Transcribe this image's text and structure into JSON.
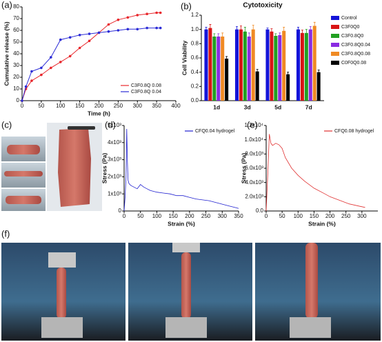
{
  "chart_data": [
    {
      "type": "line",
      "panel_label": "(a)",
      "x_label": "Time (h)",
      "y_label": "Cumulative release (%)",
      "x": [
        0,
        10,
        25,
        50,
        75,
        100,
        125,
        150,
        175,
        200,
        225,
        250,
        275,
        300,
        325,
        350,
        360
      ],
      "series": [
        {
          "name": "C3F0.8Q 0.08",
          "color": "#e8262b",
          "values": [
            0,
            10,
            17,
            22,
            28,
            33,
            38,
            45,
            51,
            58,
            65,
            69,
            71,
            73,
            74,
            75,
            75
          ]
        },
        {
          "name": "C3F0.8Q 0.04",
          "color": "#2b2bd6",
          "values": [
            0,
            12,
            25,
            28,
            37,
            52,
            54,
            56,
            57,
            58,
            59,
            60,
            61,
            61,
            62,
            62,
            62
          ]
        }
      ],
      "xlim": [
        0,
        400
      ],
      "xticks": [
        0,
        50,
        100,
        150,
        200,
        250,
        300,
        350,
        400
      ],
      "ylim": [
        0,
        80
      ],
      "yticks": [
        0,
        10,
        20,
        30,
        40,
        50,
        60,
        70,
        80
      ],
      "markers": true,
      "grid": false,
      "legend": "lower right"
    },
    {
      "type": "bar",
      "panel_label": "(b)",
      "title": "Cytotoxicity",
      "y_label": "Cell Viability",
      "categories": [
        "1d",
        "3d",
        "5d",
        "7d"
      ],
      "series": [
        {
          "name": "Control",
          "color": "#1414d8",
          "values": [
            1.0,
            1.0,
            1.0,
            1.0
          ],
          "errors": [
            0.03,
            0.04,
            0.02,
            0.03
          ]
        },
        {
          "name": "C3F0Q0",
          "color": "#d81414",
          "values": [
            1.02,
            1.0,
            0.97,
            0.95
          ],
          "errors": [
            0.05,
            0.05,
            0.04,
            0.04
          ]
        },
        {
          "name": "C3F0.8Q0",
          "color": "#22a022",
          "values": [
            0.9,
            0.97,
            0.91,
            0.95
          ],
          "errors": [
            0.04,
            0.06,
            0.03,
            0.05
          ]
        },
        {
          "name": "C3F0.8Q0.04",
          "color": "#8a2be2",
          "values": [
            0.9,
            0.9,
            0.92,
            1.0
          ],
          "errors": [
            0.04,
            0.05,
            0.03,
            0.04
          ]
        },
        {
          "name": "C3F0.8Q0.08",
          "color": "#f08a24",
          "values": [
            0.9,
            1.0,
            0.98,
            1.05
          ],
          "errors": [
            0.05,
            0.06,
            0.05,
            0.05
          ]
        },
        {
          "name": "C0F0Q0.08",
          "color": "#000000",
          "values": [
            0.59,
            0.41,
            0.37,
            0.4
          ],
          "errors": [
            0.03,
            0.03,
            0.03,
            0.03
          ]
        }
      ],
      "ylim": [
        0,
        1.2
      ],
      "yticks": [
        {
          "value": 0,
          "label": "0.0"
        },
        0.2,
        0.4,
        0.6,
        0.8,
        {
          "value": 1,
          "label": "1.0"
        },
        1.2
      ],
      "grid": false,
      "legend": "right"
    },
    {
      "type": "line",
      "panel_label": "(d)",
      "x_label": "Strain (%)",
      "y_label": "Stress (Pa)",
      "x": [
        0,
        3,
        6,
        8,
        10,
        12,
        15,
        20,
        30,
        40,
        50,
        60,
        70,
        80,
        100,
        120,
        140,
        160,
        180,
        200,
        220,
        240,
        260,
        280,
        300,
        320,
        340,
        350
      ],
      "series": [
        {
          "name": "CFQ0.04 hydrogel",
          "color": "#2020d0",
          "values": [
            0,
            800,
            2000,
            4800,
            3000,
            1800,
            1600,
            1500,
            1400,
            1300,
            1550,
            1400,
            1300,
            1200,
            1100,
            1050,
            1000,
            900,
            900,
            800,
            700,
            650,
            600,
            500,
            400,
            300,
            200,
            150
          ]
        }
      ],
      "xlim": [
        0,
        350
      ],
      "xticks": [
        0,
        50,
        100,
        150,
        200,
        250,
        300,
        350
      ],
      "ylim": [
        0,
        5000
      ],
      "yticks": [
        0,
        {
          "value": 1000,
          "label": "1x10³"
        },
        {
          "value": 2000,
          "label": "2x10³"
        },
        {
          "value": 3000,
          "label": "3x10³"
        },
        {
          "value": 4000,
          "label": "4x10³"
        },
        {
          "value": 5000,
          "label": "5x10³"
        }
      ],
      "markers": false,
      "grid": false,
      "legend": "upper right"
    },
    {
      "type": "line",
      "panel_label": "(e)",
      "x_label": "Strain (%)",
      "y_label": "Stress (Pa)",
      "x": [
        0,
        5,
        10,
        15,
        20,
        30,
        40,
        50,
        60,
        80,
        100,
        120,
        150,
        180,
        200,
        230,
        260,
        290,
        310
      ],
      "series": [
        {
          "name": "CFQ0.08 hydrogel",
          "color": "#e03030",
          "values": [
            0,
            5000,
            10800,
            9500,
            9200,
            9500,
            9300,
            8800,
            7500,
            6000,
            5000,
            4200,
            3200,
            2500,
            2000,
            1500,
            1000,
            700,
            500
          ]
        }
      ],
      "xlim": [
        0,
        350
      ],
      "xticks": [
        0,
        50,
        100,
        150,
        200,
        250,
        300
      ],
      "ylim": [
        0,
        12000
      ],
      "yticks": [
        {
          "value": 0,
          "label": "0.0"
        },
        {
          "value": 2000,
          "label": "2.0x10³"
        },
        {
          "value": 4000,
          "label": "4.0x10³"
        },
        {
          "value": 6000,
          "label": "6.0x10³"
        },
        {
          "value": 8000,
          "label": "8.0x10³"
        },
        {
          "value": 10000,
          "label": "1.0x10⁴"
        },
        {
          "value": 12000,
          "label": "1.2x10⁴"
        }
      ],
      "markers": false,
      "grid": false,
      "legend": "upper right"
    }
  ],
  "photo_labels": [
    "(c)",
    "(f)"
  ]
}
